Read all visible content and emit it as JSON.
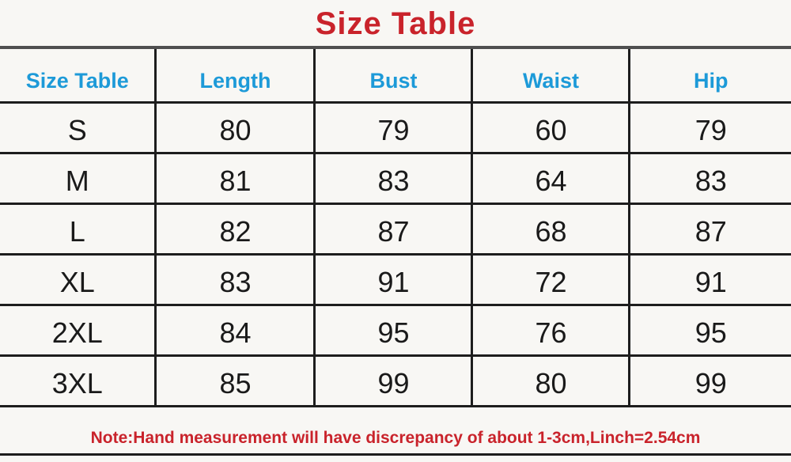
{
  "title": "Size Table",
  "colors": {
    "red": "#c9232b",
    "blue": "#1d9ad8",
    "text": "#1a1a1a",
    "line-dark": "#1d1d1d",
    "line-top": "#4f4f4f",
    "background": "#f8f7f4"
  },
  "chart_data": {
    "type": "table",
    "title": "Size Table",
    "columns": [
      "Size Table",
      "Length",
      "Bust",
      "Waist",
      "Hip"
    ],
    "rows": [
      [
        "S",
        "80",
        "79",
        "60",
        "79"
      ],
      [
        "M",
        "81",
        "83",
        "64",
        "83"
      ],
      [
        "L",
        "82",
        "87",
        "68",
        "87"
      ],
      [
        "XL",
        "83",
        "91",
        "72",
        "91"
      ],
      [
        "2XL",
        "84",
        "95",
        "76",
        "95"
      ],
      [
        "3XL",
        "85",
        "99",
        "80",
        "99"
      ]
    ],
    "note": "Note:Hand measurement will have discrepancy of about 1-3cm,Linch=2.54cm"
  }
}
